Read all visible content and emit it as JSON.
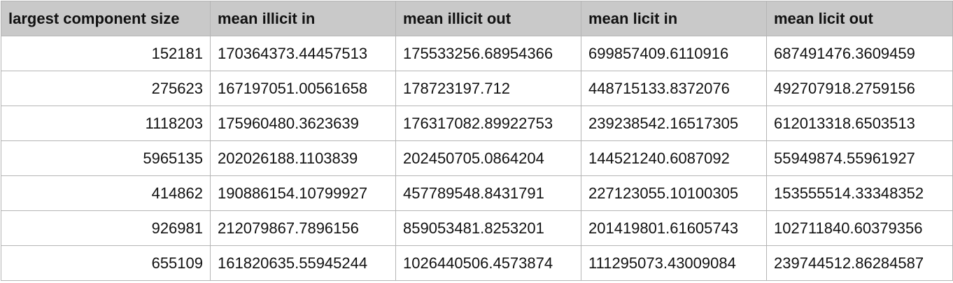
{
  "table": {
    "headers": [
      "largest component size",
      "mean illicit in",
      "mean illicit out",
      "mean licit in",
      "mean licit out"
    ],
    "rows": [
      [
        "152181",
        "170364373.44457513",
        "175533256.68954366",
        "699857409.6110916",
        "687491476.3609459"
      ],
      [
        "275623",
        "167197051.00561658",
        "178723197.712",
        "448715133.8372076",
        "492707918.2759156"
      ],
      [
        "1118203",
        "175960480.3623639",
        "176317082.89922753",
        "239238542.16517305",
        "612013318.6503513"
      ],
      [
        "5965135",
        "202026188.1103839",
        "202450705.0864204",
        "144521240.6087092",
        "55949874.55961927"
      ],
      [
        "414862",
        "190886154.10799927",
        "457789548.8431791",
        "227123055.10100305",
        "153555514.33348352"
      ],
      [
        "926981",
        "212079867.7896156",
        "859053481.8253201",
        "201419801.61605743",
        "102711840.60379356"
      ],
      [
        "655109",
        "161820635.55945244",
        "1026440506.4573874",
        "111295073.43009084",
        "239744512.86284587"
      ]
    ]
  }
}
